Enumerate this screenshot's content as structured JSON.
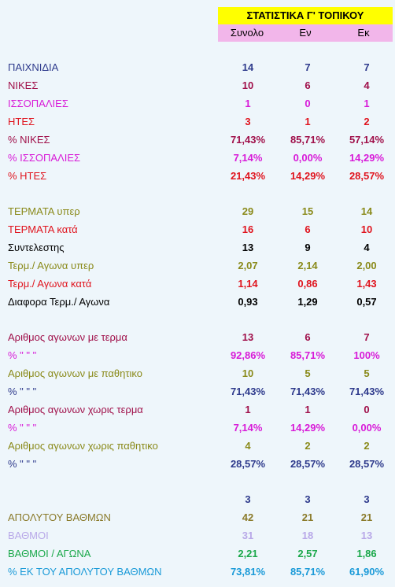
{
  "header": {
    "title": "ΣΤΑΤΙΣΤΙΚΑ Γ' ΤΟΠΙΚΟΥ",
    "columns": [
      "Συνολο",
      "Εν",
      "Εκ"
    ]
  },
  "rows": [
    {
      "label": "ΠΑΙΧΝΙΔΙΑ",
      "values": [
        "14",
        "7",
        "7"
      ],
      "color": "#2e3a8c",
      "valcolor": "#2e3a8c"
    },
    {
      "label": "ΝΙΚΕΣ",
      "values": [
        "10",
        "6",
        "4"
      ],
      "color": "#a0104a",
      "valcolor": "#a0104a"
    },
    {
      "label": "ΙΣΣΟΠΑΛΙΕΣ",
      "values": [
        "1",
        "0",
        "1"
      ],
      "color": "#d81ad8",
      "valcolor": "#d81ad8"
    },
    {
      "label": "ΗΤΕΣ",
      "values": [
        "3",
        "1",
        "2"
      ],
      "color": "#e0141e",
      "valcolor": "#e0141e"
    },
    {
      "label": "% ΝΙΚΕΣ",
      "values": [
        "71,43%",
        "85,71%",
        "57,14%"
      ],
      "color": "#a0104a",
      "valcolor": "#a0104a"
    },
    {
      "label": "% ΙΣΣΟΠΑΛΙΕΣ",
      "values": [
        "7,14%",
        "0,00%",
        "14,29%"
      ],
      "color": "#d81ad8",
      "valcolor": "#d81ad8"
    },
    {
      "label": "% ΗΤΕΣ",
      "values": [
        "21,43%",
        "14,29%",
        "28,57%"
      ],
      "color": "#e0141e",
      "valcolor": "#e0141e"
    },
    {
      "label": "ΤΕΡΜΑΤΑ υπερ",
      "values": [
        "29",
        "15",
        "14"
      ],
      "color": "#8a8a1a",
      "valcolor": "#8a8a1a"
    },
    {
      "label": "ΤΕΡΜΑΤΑ κατά",
      "values": [
        "16",
        "6",
        "10"
      ],
      "color": "#e0141e",
      "valcolor": "#e0141e"
    },
    {
      "label": "Συντελεστης",
      "values": [
        "13",
        "9",
        "4"
      ],
      "color": "#000000",
      "valcolor": "#000000"
    },
    {
      "label": "Τερμ./ Αγωνα υπερ",
      "values": [
        "2,07",
        "2,14",
        "2,00"
      ],
      "color": "#8a8a1a",
      "valcolor": "#8a8a1a"
    },
    {
      "label": "Τερμ./ Αγωνα κατά",
      "values": [
        "1,14",
        "0,86",
        "1,43"
      ],
      "color": "#e0141e",
      "valcolor": "#e0141e"
    },
    {
      "label": "Διαφορα Τερμ./ Αγωνα",
      "values": [
        "0,93",
        "1,29",
        "0,57"
      ],
      "color": "#000000",
      "valcolor": "#000000"
    },
    {
      "label": "Αριθμος αγωνων με τερμα",
      "values": [
        "13",
        "6",
        "7"
      ],
      "color": "#a0104a",
      "valcolor": "#a0104a"
    },
    {
      "label": "%              \"          \"       \"",
      "values": [
        "92,86%",
        "85,71%",
        "100%"
      ],
      "color": "#d81ad8",
      "valcolor": "#d81ad8"
    },
    {
      "label": "Αριθμος αγωνων με παθητικο",
      "values": [
        "10",
        "5",
        "5"
      ],
      "color": "#8a8a1a",
      "valcolor": "#8a8a1a"
    },
    {
      "label": "%              \"          \"       \"",
      "values": [
        "71,43%",
        "71,43%",
        "71,43%"
      ],
      "color": "#2e3a8c",
      "valcolor": "#2e3a8c"
    },
    {
      "label": "Αριθμος αγωνων χωρις τερμα",
      "values": [
        "1",
        "1",
        "0"
      ],
      "color": "#a0104a",
      "valcolor": "#a0104a"
    },
    {
      "label": "%              \"          \"       \"",
      "values": [
        "7,14%",
        "14,29%",
        "0,00%"
      ],
      "color": "#d81ad8",
      "valcolor": "#d81ad8"
    },
    {
      "label": "Αριθμος αγωνων χωρις παθητικο",
      "values": [
        "4",
        "2",
        "2"
      ],
      "color": "#8a8a1a",
      "valcolor": "#8a8a1a"
    },
    {
      "label": "%              \"          \"       \"",
      "values": [
        "28,57%",
        "28,57%",
        "28,57%"
      ],
      "color": "#2e3a8c",
      "valcolor": "#2e3a8c"
    },
    {
      "label": "",
      "values": [
        "3",
        "3",
        "3"
      ],
      "color": "#2e3a8c",
      "valcolor": "#2e3a8c"
    },
    {
      "label": "ΑΠΟΛΥΤΟΥ ΒΑΘΜΩΝ",
      "values": [
        "42",
        "21",
        "21"
      ],
      "color": "#8a7a2a",
      "valcolor": "#8a7a2a"
    },
    {
      "label": "ΒΑΘΜΟΙ",
      "values": [
        "31",
        "18",
        "13"
      ],
      "color": "#b8a8e8",
      "valcolor": "#b8a8e8"
    },
    {
      "label": "ΒΑΘΜΟΙ / ΑΓΩΝΑ",
      "values": [
        "2,21",
        "2,57",
        "1,86"
      ],
      "color": "#1aa84a",
      "valcolor": "#1aa84a"
    },
    {
      "label": "% ΕΚ ΤΟΥ ΑΠΟΛΥΤΟΥ ΒΑΘΜΩΝ",
      "values": [
        "73,81%",
        "85,71%",
        "61,90%"
      ],
      "color": "#1a9ad8",
      "valcolor": "#1a9ad8"
    }
  ]
}
